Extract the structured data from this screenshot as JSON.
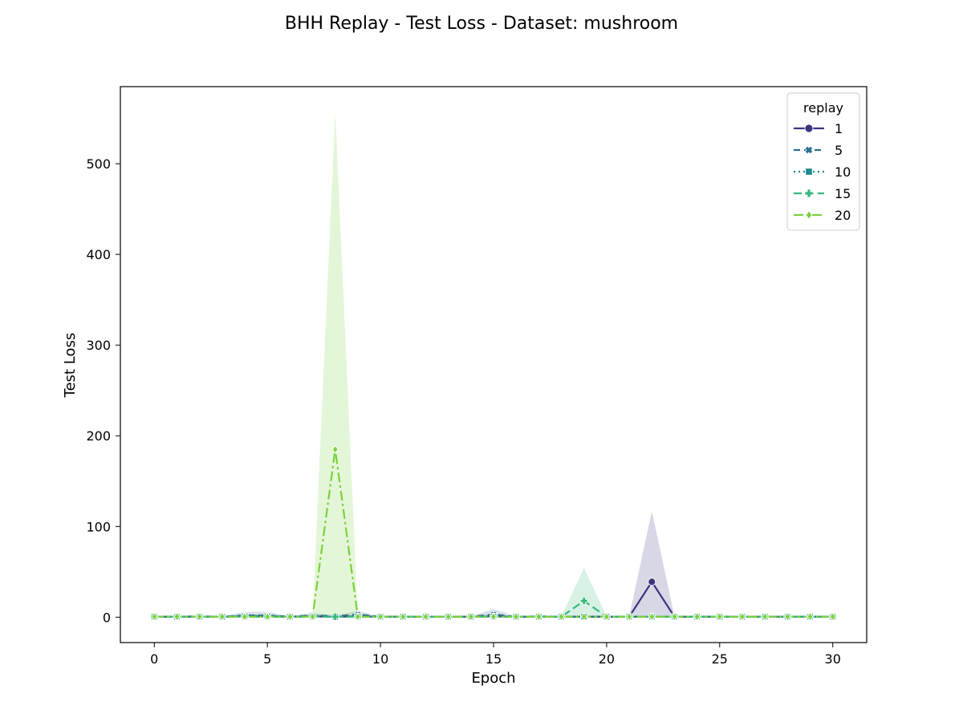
{
  "chart_data": {
    "type": "line",
    "title": "BHH Replay - Test Loss - Dataset: mushroom",
    "xlabel": "Epoch",
    "ylabel": "Test Loss",
    "xlim": [
      -1.5,
      31.5
    ],
    "ylim": [
      -28,
      585
    ],
    "xticks": [
      0,
      5,
      10,
      15,
      20,
      25,
      30
    ],
    "yticks": [
      0,
      100,
      200,
      300,
      400,
      500
    ],
    "grid": false,
    "legend": {
      "title": "replay",
      "placement": "top-right"
    },
    "x": [
      0,
      1,
      2,
      3,
      4,
      5,
      6,
      7,
      8,
      9,
      10,
      11,
      12,
      13,
      14,
      15,
      16,
      17,
      18,
      19,
      20,
      21,
      22,
      23,
      24,
      25,
      26,
      27,
      28,
      29,
      30
    ],
    "series": [
      {
        "name": "1",
        "color": "#3b3580",
        "dash": "",
        "marker": "circle",
        "values": [
          0.5,
          0.5,
          0.5,
          0.5,
          1,
          1,
          0.5,
          1,
          0.5,
          1,
          0.5,
          0.5,
          0.5,
          0.5,
          0.5,
          1,
          0.5,
          0.5,
          0.5,
          0.5,
          0.5,
          0.5,
          39,
          0.5,
          0.5,
          0.5,
          0.5,
          0.5,
          0.5,
          0.5,
          0.5
        ],
        "band_low": [
          0,
          0,
          0,
          0,
          0,
          0,
          0,
          0,
          0,
          0,
          0,
          0,
          0,
          0,
          0,
          0,
          0,
          0,
          0,
          0,
          0,
          0,
          0,
          0,
          0,
          0,
          0,
          0,
          0,
          0,
          0
        ],
        "band_high": [
          1,
          1,
          1.5,
          1,
          3,
          3,
          1,
          3,
          1,
          2,
          1,
          1,
          1,
          1,
          1,
          3,
          1,
          1,
          1,
          1,
          1,
          1,
          117,
          1,
          1,
          1,
          1,
          1,
          1,
          1,
          1
        ]
      },
      {
        "name": "5",
        "color": "#2c6e8e",
        "dash": "8,5",
        "marker": "x",
        "values": [
          0.5,
          0.5,
          1,
          0.5,
          2,
          2,
          0.5,
          2,
          1,
          3,
          0.5,
          0.5,
          0.5,
          0.5,
          0.5,
          3,
          0.5,
          1,
          0.5,
          0.5,
          0.5,
          0.5,
          0.5,
          0.5,
          0.5,
          0.5,
          0.5,
          0.5,
          0.5,
          0.5,
          0.5
        ],
        "band_low": [
          0,
          0,
          0,
          0,
          0,
          0,
          0,
          0,
          0,
          0,
          0,
          0,
          0,
          0,
          0,
          0,
          0,
          0,
          0,
          0,
          0,
          0,
          0,
          0,
          0,
          0,
          0,
          0,
          0,
          0,
          0
        ],
        "band_high": [
          1,
          1,
          2,
          1,
          6,
          6,
          1,
          5,
          2,
          7,
          1,
          1,
          1,
          1,
          1,
          9,
          1,
          2,
          1,
          1,
          1,
          1,
          1,
          1,
          1,
          1,
          1,
          1,
          1,
          1,
          1
        ]
      },
      {
        "name": "10",
        "color": "#1f8b8b",
        "dash": "2,4",
        "marker": "square",
        "values": [
          0.5,
          0.5,
          0.5,
          0.5,
          1,
          1,
          0.5,
          1,
          0.5,
          1,
          0.5,
          0.5,
          0.5,
          0.5,
          0.5,
          1,
          0.5,
          0.5,
          0.5,
          0.5,
          0.5,
          0.5,
          0.5,
          0.5,
          0.5,
          0.5,
          0.5,
          0.5,
          0.5,
          0.5,
          0.5
        ],
        "band_low": [
          0,
          0,
          0,
          0,
          0,
          0,
          0,
          0,
          0,
          0,
          0,
          0,
          0,
          0,
          0,
          0,
          0,
          0,
          0,
          0,
          0,
          0,
          0,
          0,
          0,
          0,
          0,
          0,
          0,
          0,
          0
        ],
        "band_high": [
          1,
          1,
          1,
          1,
          3,
          3,
          1,
          2,
          1,
          2,
          1,
          1,
          1,
          1,
          1,
          2,
          1,
          1,
          1,
          1,
          1,
          1,
          1,
          1,
          1,
          1,
          1,
          1,
          1,
          1,
          1
        ]
      },
      {
        "name": "15",
        "color": "#35b779",
        "dash": "10,5",
        "marker": "plus",
        "values": [
          0.5,
          0.5,
          0.5,
          0.5,
          0.5,
          0.5,
          0.5,
          0.5,
          0.5,
          0.5,
          0.5,
          0.5,
          0.5,
          0.5,
          0.5,
          0.5,
          0.5,
          0.5,
          0.5,
          18,
          0.5,
          0.5,
          0.5,
          0.5,
          0.5,
          0.5,
          0.5,
          0.5,
          0.5,
          0.5,
          0.5
        ],
        "band_low": [
          0,
          0,
          0,
          0,
          0,
          0,
          0,
          0,
          0,
          0,
          0,
          0,
          0,
          0,
          0,
          0,
          0,
          0,
          0,
          0,
          0,
          0,
          0,
          0,
          0,
          0,
          0,
          0,
          0,
          0,
          0
        ],
        "band_high": [
          1,
          1,
          1,
          1,
          1,
          1,
          1,
          1,
          1,
          1,
          1,
          1,
          1,
          1,
          1,
          1,
          1,
          1,
          1,
          54,
          1,
          1,
          1,
          1,
          1,
          1,
          1,
          1,
          1,
          1,
          1
        ]
      },
      {
        "name": "20",
        "color": "#7ad13b",
        "dash": "12,4,3,4",
        "marker": "diamond",
        "values": [
          0.5,
          0.5,
          0.5,
          0.5,
          0.5,
          0.5,
          0.5,
          0.5,
          185,
          0.5,
          0.5,
          0.5,
          0.5,
          0.5,
          0.5,
          0.5,
          0.5,
          0.5,
          0.5,
          0.5,
          0.5,
          0.5,
          0.5,
          0.5,
          0.5,
          0.5,
          0.5,
          0.5,
          0.5,
          0.5,
          0.5
        ],
        "band_low": [
          0,
          0,
          0,
          0,
          0,
          0,
          0,
          0,
          0,
          0,
          0,
          0,
          0,
          0,
          0,
          0,
          0,
          0,
          0,
          0,
          0,
          0,
          0,
          0,
          0,
          0,
          0,
          0,
          0,
          0,
          0
        ],
        "band_high": [
          1,
          1,
          1,
          1,
          1,
          1,
          1,
          1,
          558,
          1,
          1,
          1,
          1,
          1,
          1,
          1,
          1,
          1,
          1,
          1,
          1,
          1,
          1,
          1,
          1,
          1,
          1,
          1,
          1,
          1,
          1
        ]
      }
    ]
  }
}
